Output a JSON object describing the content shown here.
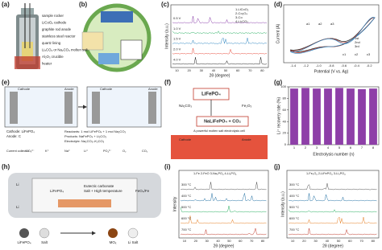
{
  "a": {
    "label": "(a)",
    "callouts": [
      "sample rocker",
      "LiCoO₂ cathode",
      "graphite rod anode",
      "stainless steel reactor",
      "quartz lining",
      "Li₂CO₃ or Na₂CO₃ molten salt",
      "Al₂O₃ crucible",
      "heater"
    ]
  },
  "b": {
    "label": "(b)"
  },
  "c": {
    "label": "(c)",
    "ylabel": "Intensity (a.u.)",
    "xlabel": "2θ (degree)",
    "legend": [
      "1-LiCoO₂",
      "2-Co₃O₄",
      "3-Co",
      "4-Li₂CO₃"
    ],
    "traces": [
      "4.0 V",
      "2.0 V",
      "1.5 V",
      "1.0 V",
      "0.5 V"
    ],
    "xticks": [
      "10",
      "20",
      "30",
      "40",
      "50",
      "60",
      "70",
      "80"
    ]
  },
  "d": {
    "label": "(d)",
    "ylabel": "Current (A)",
    "xlabel": "Potential (V vs. Ag)",
    "legend": [
      "1st",
      "2nd",
      "3rd"
    ],
    "xticks": [
      "-1.4",
      "-1.2",
      "-1.0",
      "-0.8",
      "-0.6",
      "-0.4",
      "-0.2"
    ],
    "peaks": [
      "a1",
      "a2",
      "a3",
      "c1",
      "c2",
      "c3"
    ]
  },
  "e": {
    "label": "(e)",
    "left": [
      "Cathode",
      "Anode"
    ],
    "right": [
      "Cathode",
      "Anode"
    ],
    "cathode": "Cathode: LiFePO₄",
    "anode": "Anode: C",
    "reactants": "Reactants: 1 mol LiFePO₄ + 1 mol Na₂CO₃",
    "products": "Products: NaFePO₄ + Li₂CO₃",
    "electrolyte": "Electrolyte: Na₂CO₃–K₂CO₃",
    "legend": [
      "Current collector",
      "CO₃²⁻",
      "K⁺",
      "Na⁺",
      "Li⁺",
      "PO₄³⁻",
      "O₂",
      "CO₂"
    ]
  },
  "f": {
    "label": "(f)",
    "main": "LiFePO₄",
    "left": "Na₂CO₃",
    "right": "Fe₂O₃",
    "product": "NaLiFePO₄ + CO₂",
    "bottom": [
      "Cathode",
      "Anode"
    ],
    "note": "A powerful molten salt electrolysis cell"
  },
  "g": {
    "label": "(g)",
    "ylabel": "Li⁺ recovery rate (%)",
    "xlabel": "Electrolysis number (n)",
    "categories": [
      "1",
      "2",
      "3",
      "4",
      "5",
      "6",
      "7",
      "8"
    ],
    "values": [
      97,
      98,
      97,
      97,
      98,
      97,
      96,
      97
    ],
    "color": "#8e3fa8",
    "ylim": [
      0,
      100
    ],
    "yticks": [
      0,
      20,
      40,
      60,
      80,
      100
    ]
  },
  "h": {
    "label": "(h)",
    "texts": [
      "Li",
      "Li",
      "LiFePO₄",
      "Eutectic carbonate",
      "Salt + High temperature",
      "FeO₄/Fe",
      "LiFePO₄",
      "Salt",
      "MOₓ",
      "Li Salt"
    ]
  },
  "i": {
    "label": "(i)",
    "ylabel": "Intensity",
    "xlabel": "2θ (degree)",
    "legend": "1-Fe  2-FeO  3-Na₃PO₄  4-Li₃PO₄",
    "traces": [
      "700 °C",
      "600 °C",
      "500 °C",
      "400 °C",
      "300 °C"
    ],
    "xticks": [
      "10",
      "20",
      "30",
      "40",
      "50",
      "60",
      "70",
      "80"
    ]
  },
  "j": {
    "label": "(j)",
    "ylabel": "Intensity (a.u.)",
    "xlabel": "2θ (degree)",
    "legend": "1-Fe₃O₄  2-LiFePO₄  3-Li₃PO₄",
    "traces": [
      "700 °C",
      "600 °C",
      "500 °C",
      "400 °C",
      "300 °C"
    ],
    "xticks": [
      "10",
      "20",
      "30",
      "40",
      "50",
      "60",
      "70",
      "80"
    ]
  }
}
